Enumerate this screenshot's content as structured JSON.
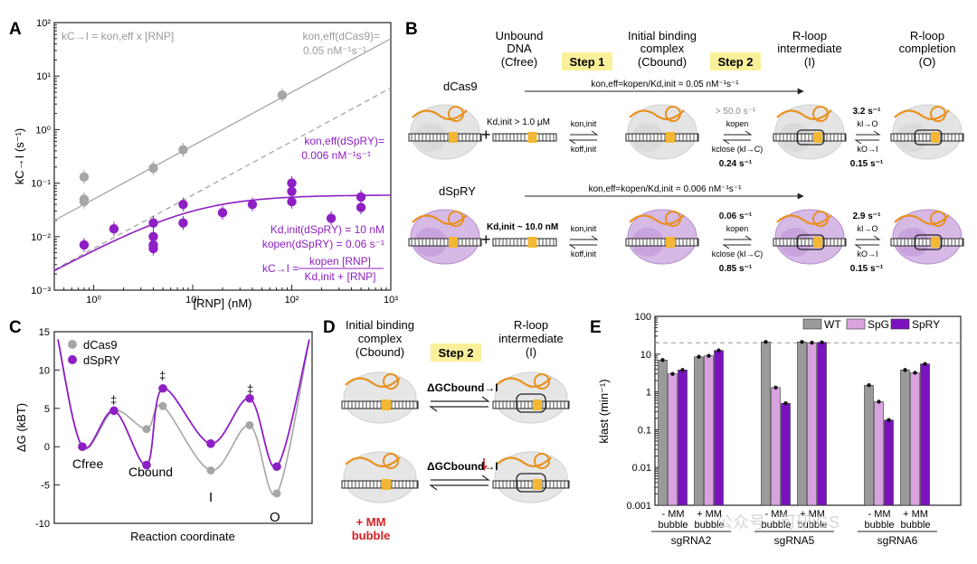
{
  "colors": {
    "dcas9": "#a6a6a6",
    "dspry": "#8e1fc4",
    "spg": "#d9a3e0",
    "spry": "#7a12bf",
    "wt": "#9a9a9a",
    "highlight": "#fbf09a",
    "orange": "#e8901e",
    "red": "#d62020"
  },
  "panel_labels": [
    "A",
    "B",
    "C",
    "D",
    "E"
  ],
  "panelA": {
    "ylabel": "kC→I (s⁻¹)",
    "xlabel": "[RNP] (nM)",
    "xticks": [
      "10⁰",
      "10¹",
      "10²",
      "10³"
    ],
    "yticks": [
      "10²",
      "10¹",
      "10⁰",
      "10⁻¹",
      "10⁻²",
      "10⁻³"
    ],
    "eq_top": "kC→I = kon,eff x [RNP]",
    "dcas9_label": [
      "kon,eff(dCas9)=",
      "0.05 nM⁻¹s⁻¹"
    ],
    "dspry_label": [
      "kon,eff(dSpRY)=",
      "0.006 nM⁻¹s⁻¹"
    ],
    "fit_labels": [
      "Kd,init(dSpRY) = 10 nM",
      "kopen(dSpRY) = 0.06 s⁻¹"
    ],
    "formula": {
      "lhs": "kC→I =",
      "num": "kopen [RNP]",
      "den": "Kd,init + [RNP]"
    }
  },
  "panelB": {
    "states": [
      {
        "title": [
          "Unbound",
          "DNA"
        ],
        "sub": "(Cfree)"
      },
      {
        "title": [
          "Initial binding",
          "complex"
        ],
        "sub": "(Cbound)"
      },
      {
        "title": [
          "R-loop",
          "intermediate"
        ],
        "sub": "(I)"
      },
      {
        "title": [
          "R-loop",
          "completion"
        ],
        "sub": "(O)"
      }
    ],
    "steps": [
      "Step 1",
      "Step 2"
    ],
    "dcas9": {
      "name": "dCas9",
      "kon": "kon,eff=kopen/Kd,init = 0.05 nM⁻¹s⁻¹",
      "kd": "Kd,init > 1.0 μM",
      "kopen": "> 50.0 s⁻¹",
      "kclose": "0.24 s⁻¹",
      "kio": "3.2 s⁻¹",
      "koi": "0.15 s⁻¹"
    },
    "dspry": {
      "name": "dSpRY",
      "kon": "kon,eff=kopen/Kd,init = 0.006 nM⁻¹s⁻¹",
      "kd": "Kd,init ~ 10.0 nM",
      "kopen": "0.06 s⁻¹",
      "kclose": "0.85 s⁻¹",
      "kio": "2.9 s⁻¹",
      "koi": "0.15 s⁻¹"
    },
    "rate_labels": {
      "on": "kon,init",
      "off": "koff,init",
      "open": "kopen",
      "close": "kclose (kI→C)",
      "io": "kI→O",
      "oi": "kO→I"
    },
    "plus": "+"
  },
  "panelC": {
    "ylabel": "ΔG (kBT)",
    "xlabel": "Reaction coordinate",
    "yticks": [
      "15",
      "10",
      "5",
      "0",
      "-5",
      "-10"
    ],
    "legend": [
      "dCas9",
      "dSpRY"
    ],
    "states": [
      "Cfree",
      "Cbound",
      "I",
      "O"
    ],
    "dagger": "‡"
  },
  "panelD": {
    "left_title": [
      "Initial binding",
      "complex"
    ],
    "left_sub": "(Cbound)",
    "right_title": [
      "R-loop",
      "intermediate"
    ],
    "right_sub": "(I)",
    "step": "Step 2",
    "dg": "ΔGCbound→I",
    "mm": [
      "+ MM",
      "bubble"
    ]
  },
  "panelE": {
    "ylabel": "klast (min⁻¹)",
    "yticks": [
      "100",
      "10",
      "1",
      "0.1",
      "0.01",
      "0.001"
    ],
    "legend": [
      "WT",
      "SpG",
      "SpRY"
    ],
    "group_labels": [
      "- MM",
      "bubble",
      "+ MM",
      "bubble"
    ],
    "guides": [
      "sgRNA2",
      "sgRNA5",
      "sgRNA6"
    ],
    "watermark": "公众号 · 可研iGS"
  },
  "chart_data": [
    {
      "type": "scatter",
      "title": "",
      "xlabel": "[RNP] (nM)",
      "ylabel": "kC→I (s⁻¹)",
      "xscale": "log",
      "yscale": "log",
      "xlim": [
        0.4,
        1000
      ],
      "ylim": [
        0.001,
        100
      ],
      "series": [
        {
          "name": "dCas9",
          "x": [
            0.8,
            0.8,
            0.8,
            4,
            8,
            80
          ],
          "y": [
            0.13,
            0.05,
            0.045,
            0.19,
            0.42,
            4.4
          ]
        },
        {
          "name": "dSpRY",
          "x": [
            0.8,
            1.6,
            4,
            4,
            4,
            4,
            8,
            8,
            20,
            40,
            100,
            100,
            100,
            250,
            500,
            500
          ],
          "y": [
            0.007,
            0.014,
            0.018,
            0.01,
            0.007,
            0.006,
            0.04,
            0.018,
            0.028,
            0.04,
            0.1,
            0.07,
            0.045,
            0.022,
            0.055,
            0.035
          ]
        }
      ],
      "fits": [
        {
          "name": "dCas9",
          "kon_eff": 0.05
        },
        {
          "name": "dSpRY",
          "kon_eff": 0.006,
          "Kd_init": 10,
          "kopen": 0.06
        }
      ]
    },
    {
      "type": "line",
      "title": "",
      "xlabel": "Reaction coordinate",
      "ylabel": "ΔG (kBT)",
      "ylim": [
        -10,
        15
      ],
      "series": [
        {
          "name": "dCas9",
          "x": [
            "Cfree",
            "TS1",
            "Cbound",
            "TS2",
            "I",
            "TS3",
            "O"
          ],
          "y": [
            0,
            4.7,
            2.3,
            5.3,
            -3.1,
            2.8,
            -6.1
          ]
        },
        {
          "name": "dSpRY",
          "x": [
            "Cfree",
            "TS1",
            "Cbound",
            "TS2",
            "I",
            "TS3",
            "O"
          ],
          "y": [
            0,
            4.7,
            -2.4,
            7.6,
            0.4,
            6.3,
            -2.6
          ]
        }
      ]
    },
    {
      "type": "bar",
      "title": "",
      "ylabel": "klast (min⁻¹)",
      "yscale": "log",
      "ylim": [
        0.001,
        100
      ],
      "categories": [
        "sgRNA2 - MM bubble",
        "sgRNA2 + MM bubble",
        "sgRNA5 - MM bubble",
        "sgRNA5 + MM bubble",
        "sgRNA6 - MM bubble",
        "sgRNA6 + MM bubble"
      ],
      "series": [
        {
          "name": "WT",
          "values": [
            7.0,
            8.5,
            21.0,
            21.0,
            1.5,
            3.8
          ]
        },
        {
          "name": "SpG",
          "values": [
            3.0,
            9.0,
            1.3,
            20.0,
            0.55,
            3.2
          ]
        },
        {
          "name": "SpRY",
          "values": [
            3.8,
            12.5,
            0.5,
            20.5,
            0.18,
            5.5
          ]
        }
      ],
      "reference_line": 20
    }
  ]
}
